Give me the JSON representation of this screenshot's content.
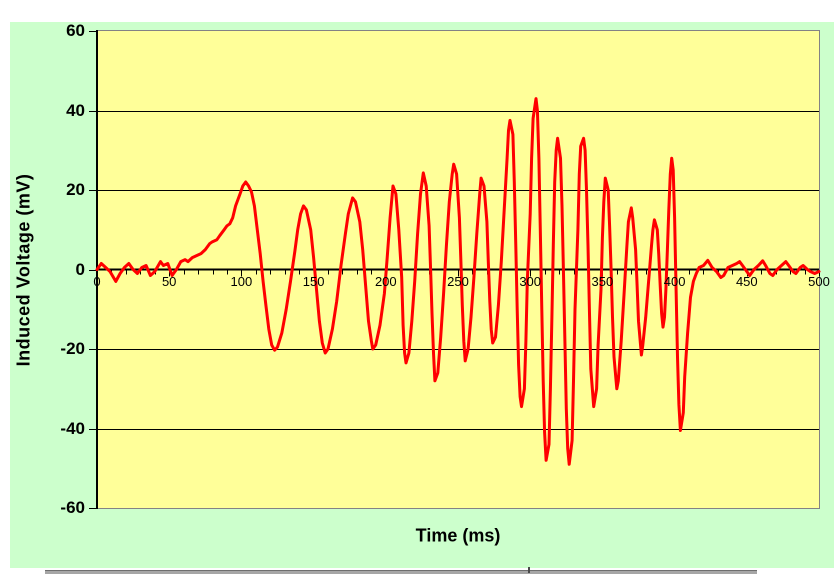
{
  "colors": {
    "chart_background": "#ccffcc",
    "plot_background": "#ffff99",
    "plot_border": "#848284",
    "gridline": "#000000",
    "axis": "#000000",
    "series_line": "#ff0000",
    "text": "#000000"
  },
  "chart_data": {
    "type": "line",
    "title": "",
    "xlabel": "Time (ms)",
    "ylabel": "Induced Voltage (mV)",
    "xlim": [
      0,
      500
    ],
    "ylim": [
      -60,
      60
    ],
    "x_tick_labels": [
      "0",
      "50",
      "100",
      "150",
      "200",
      "250",
      "300",
      "350",
      "400",
      "450",
      "500"
    ],
    "y_tick_labels": [
      "60",
      "40",
      "20",
      "0",
      "-20",
      "-40",
      "-60"
    ],
    "x_major_unit": 50,
    "x_minor_unit": 10,
    "y_major_unit": 20,
    "grid": "horizontal major gridlines on, vertical off",
    "legend": "none",
    "series": [
      {
        "name": "Induced Voltage",
        "color": "#ff0000",
        "points": [
          [
            0,
            0
          ],
          [
            3,
            1.5
          ],
          [
            6,
            0.5
          ],
          [
            9,
            -0.5
          ],
          [
            13,
            -3
          ],
          [
            16,
            -1
          ],
          [
            19,
            0.5
          ],
          [
            22,
            1.5
          ],
          [
            25,
            0
          ],
          [
            28,
            -1
          ],
          [
            31,
            0.5
          ],
          [
            34,
            1
          ],
          [
            37,
            -1.5
          ],
          [
            40,
            -0.5
          ],
          [
            44,
            2
          ],
          [
            46,
            1
          ],
          [
            49,
            1.5
          ],
          [
            52,
            -1.5
          ],
          [
            55,
            0
          ],
          [
            58,
            2
          ],
          [
            61,
            2.5
          ],
          [
            63,
            2
          ],
          [
            66,
            3
          ],
          [
            69,
            3.5
          ],
          [
            72,
            4
          ],
          [
            75,
            5
          ],
          [
            78,
            6.5
          ],
          [
            80,
            7
          ],
          [
            83,
            7.5
          ],
          [
            85,
            8.5
          ],
          [
            88,
            10
          ],
          [
            90,
            11
          ],
          [
            92,
            11.5
          ],
          [
            94,
            13
          ],
          [
            96,
            16
          ],
          [
            99,
            19
          ],
          [
            101,
            21
          ],
          [
            103,
            22
          ],
          [
            105,
            21
          ],
          [
            107,
            19.5
          ],
          [
            109,
            16
          ],
          [
            111,
            10
          ],
          [
            113,
            4
          ],
          [
            115,
            -3
          ],
          [
            117,
            -9
          ],
          [
            119,
            -15
          ],
          [
            121,
            -19
          ],
          [
            123,
            -20.3
          ],
          [
            125,
            -19.5
          ],
          [
            128,
            -16
          ],
          [
            131,
            -10
          ],
          [
            134,
            -3
          ],
          [
            137,
            4.5
          ],
          [
            139,
            10
          ],
          [
            141,
            14
          ],
          [
            143,
            16
          ],
          [
            145,
            15
          ],
          [
            148,
            10
          ],
          [
            150,
            3
          ],
          [
            152,
            -5
          ],
          [
            154,
            -13
          ],
          [
            156,
            -18.5
          ],
          [
            158,
            -21
          ],
          [
            160,
            -20
          ],
          [
            163,
            -15
          ],
          [
            166,
            -8
          ],
          [
            169,
            1
          ],
          [
            172,
            9
          ],
          [
            174,
            14
          ],
          [
            177,
            18
          ],
          [
            179,
            17
          ],
          [
            182,
            12
          ],
          [
            184,
            5
          ],
          [
            186,
            -4
          ],
          [
            188,
            -13
          ],
          [
            190,
            -18
          ],
          [
            191,
            -20
          ],
          [
            193,
            -19
          ],
          [
            196,
            -14
          ],
          [
            199,
            -6
          ],
          [
            201,
            3
          ],
          [
            203,
            13
          ],
          [
            205,
            21
          ],
          [
            207,
            19
          ],
          [
            209,
            10
          ],
          [
            211,
            -2
          ],
          [
            212,
            -14
          ],
          [
            213,
            -21
          ],
          [
            214,
            -23.5
          ],
          [
            216,
            -21
          ],
          [
            218,
            -13
          ],
          [
            220,
            -3
          ],
          [
            222,
            9
          ],
          [
            224,
            19
          ],
          [
            226,
            24.3
          ],
          [
            228,
            21
          ],
          [
            230,
            11
          ],
          [
            231,
            0
          ],
          [
            232,
            -11
          ],
          [
            233,
            -21
          ],
          [
            234,
            -28
          ],
          [
            236,
            -26
          ],
          [
            238,
            -17
          ],
          [
            240,
            -6
          ],
          [
            242,
            6
          ],
          [
            244,
            17
          ],
          [
            246,
            24
          ],
          [
            247,
            26.5
          ],
          [
            249,
            24
          ],
          [
            251,
            13
          ],
          [
            252,
            2
          ],
          [
            253,
            -9
          ],
          [
            254,
            -18
          ],
          [
            255,
            -23
          ],
          [
            257,
            -20
          ],
          [
            259,
            -12
          ],
          [
            261,
            -2
          ],
          [
            263,
            9
          ],
          [
            265,
            19
          ],
          [
            266,
            23
          ],
          [
            268,
            21
          ],
          [
            270,
            12
          ],
          [
            271,
            2
          ],
          [
            272,
            -8
          ],
          [
            273,
            -15
          ],
          [
            274,
            -18.5
          ],
          [
            276,
            -17
          ],
          [
            278,
            -9
          ],
          [
            280,
            2
          ],
          [
            282,
            15
          ],
          [
            284,
            28
          ],
          [
            285,
            35
          ],
          [
            286,
            37.5
          ],
          [
            288,
            34
          ],
          [
            289,
            22
          ],
          [
            290,
            6
          ],
          [
            291,
            -10
          ],
          [
            292,
            -24
          ],
          [
            293,
            -32
          ],
          [
            294,
            -34.5
          ],
          [
            296,
            -30
          ],
          [
            297,
            -18
          ],
          [
            298,
            -3
          ],
          [
            300,
            14
          ],
          [
            301,
            28
          ],
          [
            302,
            38
          ],
          [
            304,
            43
          ],
          [
            305,
            40
          ],
          [
            306,
            28
          ],
          [
            307,
            10
          ],
          [
            308,
            -10
          ],
          [
            309,
            -28
          ],
          [
            310,
            -41
          ],
          [
            311,
            -48
          ],
          [
            313,
            -44
          ],
          [
            314,
            -30
          ],
          [
            315,
            -12
          ],
          [
            316,
            6
          ],
          [
            317,
            22
          ],
          [
            318,
            30
          ],
          [
            319,
            33
          ],
          [
            321,
            28
          ],
          [
            322,
            16
          ],
          [
            323,
            0
          ],
          [
            324,
            -18
          ],
          [
            325,
            -35
          ],
          [
            326,
            -45
          ],
          [
            327,
            -49
          ],
          [
            329,
            -43
          ],
          [
            330,
            -28
          ],
          [
            331,
            -10
          ],
          [
            333,
            10
          ],
          [
            334,
            24
          ],
          [
            335,
            31
          ],
          [
            337,
            33
          ],
          [
            338,
            30
          ],
          [
            339,
            20
          ],
          [
            340,
            6
          ],
          [
            341,
            -10
          ],
          [
            342,
            -25
          ],
          [
            344,
            -34.5
          ],
          [
            346,
            -30
          ],
          [
            347,
            -19
          ],
          [
            349,
            -5
          ],
          [
            350,
            8
          ],
          [
            351,
            17
          ],
          [
            352,
            23
          ],
          [
            354,
            20
          ],
          [
            355,
            11
          ],
          [
            356,
            0
          ],
          [
            357,
            -12
          ],
          [
            358,
            -22
          ],
          [
            360,
            -30
          ],
          [
            361,
            -28
          ],
          [
            363,
            -18
          ],
          [
            365,
            -6
          ],
          [
            367,
            6
          ],
          [
            368,
            12
          ],
          [
            370,
            15.5
          ],
          [
            371,
            13
          ],
          [
            373,
            5
          ],
          [
            374,
            -4
          ],
          [
            375,
            -13
          ],
          [
            377,
            -21.5
          ],
          [
            378,
            -19
          ],
          [
            380,
            -12
          ],
          [
            382,
            -3
          ],
          [
            384,
            6
          ],
          [
            385,
            10
          ],
          [
            386,
            12.5
          ],
          [
            388,
            10
          ],
          [
            389,
            4
          ],
          [
            390,
            -4
          ],
          [
            391,
            -11
          ],
          [
            392,
            -14.5
          ],
          [
            393,
            -12
          ],
          [
            394,
            -5
          ],
          [
            395,
            5
          ],
          [
            396,
            15
          ],
          [
            397,
            24
          ],
          [
            398,
            28
          ],
          [
            399,
            25
          ],
          [
            400,
            13
          ],
          [
            401,
            -4
          ],
          [
            402,
            -22
          ],
          [
            403,
            -34
          ],
          [
            404,
            -40.5
          ],
          [
            406,
            -36
          ],
          [
            407,
            -27
          ],
          [
            409,
            -16
          ],
          [
            411,
            -7
          ],
          [
            413,
            -3
          ],
          [
            415,
            -1
          ],
          [
            417,
            0.5
          ],
          [
            420,
            1
          ],
          [
            423,
            2.3
          ],
          [
            426,
            0.5
          ],
          [
            429,
            -0.5
          ],
          [
            432,
            -2
          ],
          [
            434,
            -1.5
          ],
          [
            437,
            0.5
          ],
          [
            440,
            1
          ],
          [
            443,
            1.5
          ],
          [
            445,
            2
          ],
          [
            447,
            1
          ],
          [
            450,
            -0.5
          ],
          [
            452,
            -1.5
          ],
          [
            455,
            0
          ],
          [
            458,
            1
          ],
          [
            461,
            2.2
          ],
          [
            463,
            1
          ],
          [
            466,
            -1
          ],
          [
            468,
            -1.5
          ],
          [
            471,
            0
          ],
          [
            474,
            1
          ],
          [
            477,
            2
          ],
          [
            479,
            1
          ],
          [
            482,
            -0.5
          ],
          [
            484,
            -1
          ],
          [
            487,
            0.5
          ],
          [
            489,
            1
          ],
          [
            492,
            0
          ],
          [
            494,
            -0.5
          ],
          [
            497,
            -1
          ],
          [
            500,
            -0.5
          ]
        ]
      }
    ]
  }
}
